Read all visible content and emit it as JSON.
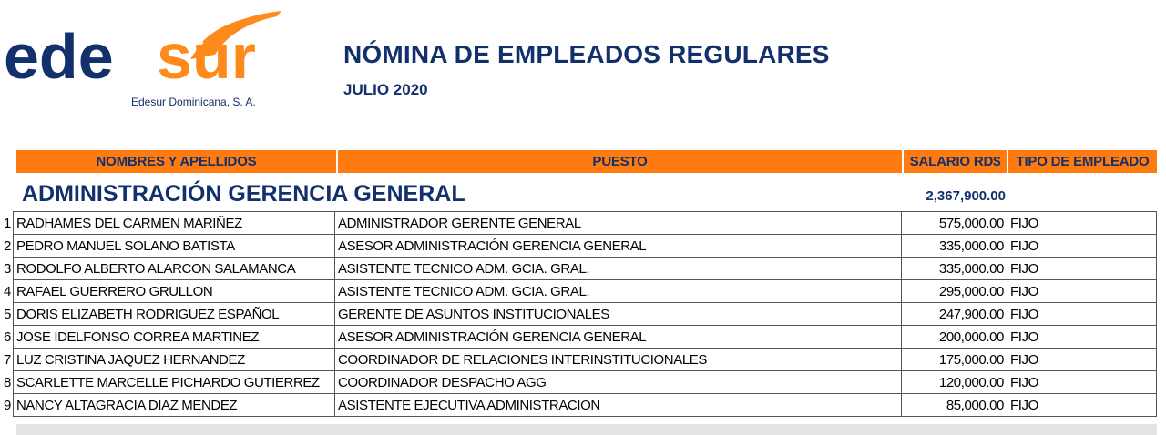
{
  "logo": {
    "brand_left": "ede",
    "brand_right": "sur",
    "tagline": "Edesur Dominicana, S. A.",
    "colors": {
      "navy": "#12306b",
      "orange": "#ff8a1c"
    }
  },
  "header": {
    "title": "NÓMINA DE EMPLEADOS REGULARES",
    "period": "JULIO 2020"
  },
  "columns": [
    "NOMBRES Y APELLIDOS",
    "PUESTO",
    "SALARIO RD$",
    "TIPO DE EMPLEADO"
  ],
  "section": {
    "name": "ADMINISTRACIÓN GERENCIA GENERAL",
    "total": "2,367,900.00"
  },
  "rows": [
    {
      "n": "1",
      "name": "RADHAMES DEL CARMEN MARIÑEZ",
      "puesto": "ADMINISTRADOR GERENTE GENERAL",
      "salario": "575,000.00",
      "tipo": "FIJO"
    },
    {
      "n": "2",
      "name": "PEDRO MANUEL SOLANO BATISTA",
      "puesto": "ASESOR ADMINISTRACIÓN GERENCIA GENERAL",
      "salario": "335,000.00",
      "tipo": "FIJO"
    },
    {
      "n": "3",
      "name": "RODOLFO ALBERTO ALARCON SALAMANCA",
      "puesto": "ASISTENTE TECNICO ADM. GCIA. GRAL.",
      "salario": "335,000.00",
      "tipo": "FIJO"
    },
    {
      "n": "4",
      "name": "RAFAEL GUERRERO GRULLON",
      "puesto": "ASISTENTE TECNICO ADM. GCIA. GRAL.",
      "salario": "295,000.00",
      "tipo": "FIJO"
    },
    {
      "n": "5",
      "name": "DORIS ELIZABETH RODRIGUEZ ESPAÑOL",
      "puesto": "GERENTE DE ASUNTOS INSTITUCIONALES",
      "salario": "247,900.00",
      "tipo": "FIJO"
    },
    {
      "n": "6",
      "name": "JOSE IDELFONSO CORREA MARTINEZ",
      "puesto": "ASESOR ADMINISTRACIÓN GERENCIA GENERAL",
      "salario": "200,000.00",
      "tipo": "FIJO"
    },
    {
      "n": "7",
      "name": "LUZ CRISTINA JAQUEZ HERNANDEZ",
      "puesto": "COORDINADOR DE RELACIONES INTERINSTITUCIONALES",
      "salario": "175,000.00",
      "tipo": "FIJO"
    },
    {
      "n": "8",
      "name": "SCARLETTE MARCELLE PICHARDO GUTIERREZ",
      "puesto": "COORDINADOR DESPACHO AGG",
      "salario": "120,000.00",
      "tipo": "FIJO"
    },
    {
      "n": "9",
      "name": "NANCY ALTAGRACIA DIAZ MENDEZ",
      "puesto": "ASISTENTE EJECUTIVA ADMINISTRACION",
      "salario": "85,000.00",
      "tipo": "FIJO"
    }
  ]
}
